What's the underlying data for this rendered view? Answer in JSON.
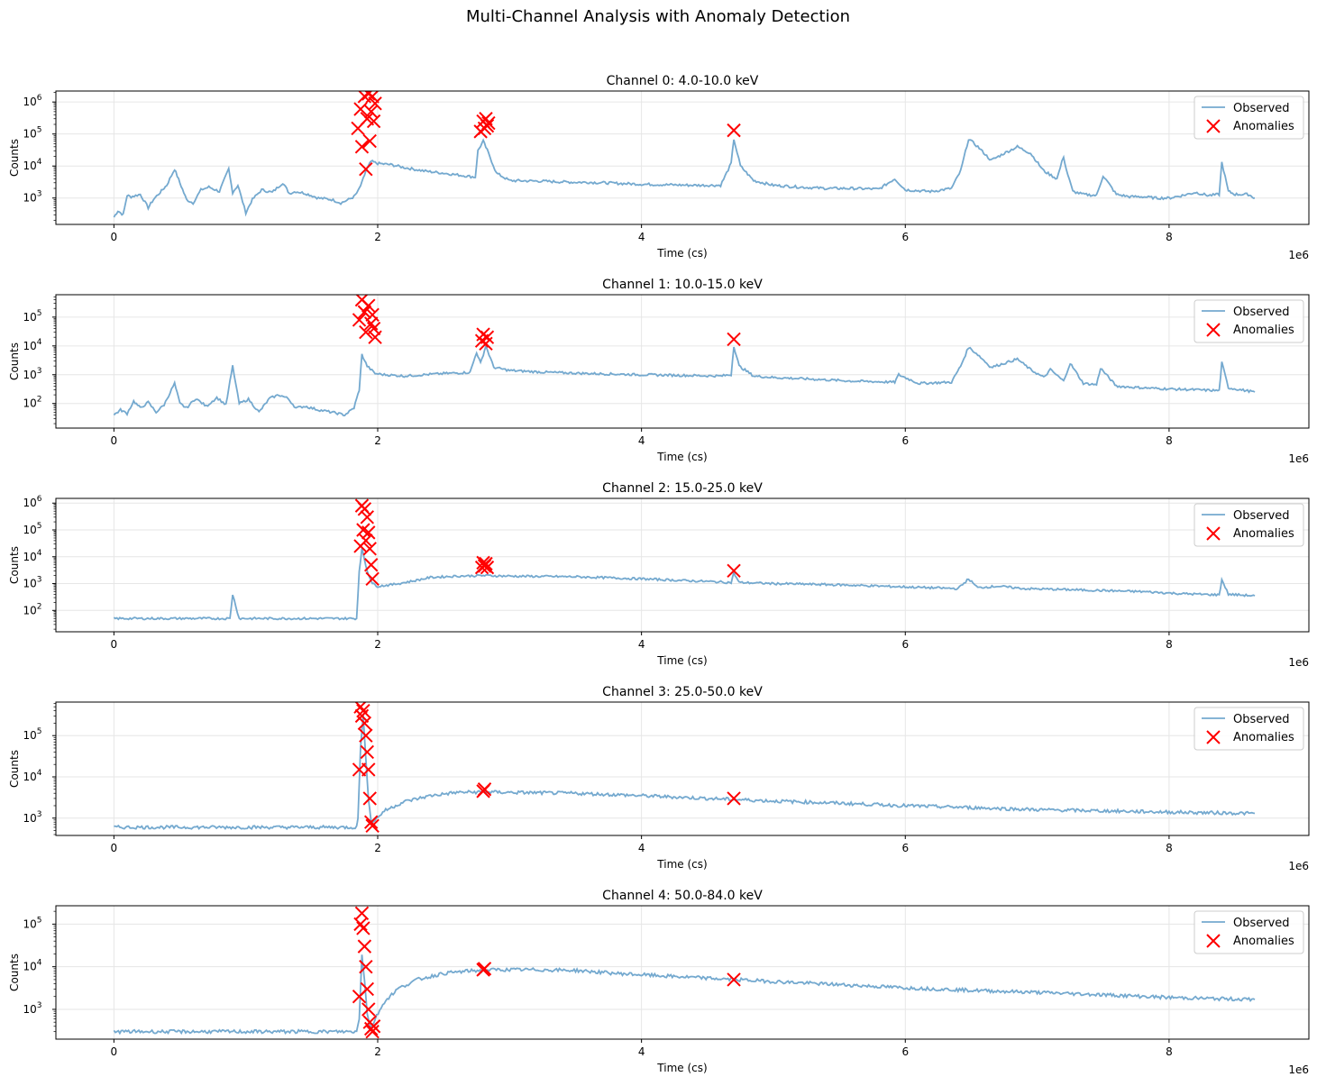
{
  "figure": {
    "title": "Multi-Channel Analysis with Anomaly Detection"
  },
  "legend": {
    "observed_label": "Observed",
    "anomalies_label": "Anomalies",
    "placement": "top-right"
  },
  "colors": {
    "observed": "#74a9cf",
    "anomalies": "#ff0000",
    "grid": "#e6e6e6"
  },
  "chart_data": [
    {
      "type": "line",
      "title": "Channel 0: 4.0-10.0 keV",
      "xlabel": "Time (cs)",
      "ylabel": "Counts",
      "x_offset_label": "1e6",
      "xlim": [
        -0.44,
        9.06
      ],
      "ylim": [
        150,
        2200000
      ],
      "yscale": "log",
      "grid": true,
      "xticks": [
        0,
        2,
        4,
        6,
        8
      ],
      "yticks": [
        {
          "value": 1000,
          "mantissa": "10",
          "exp": "3"
        },
        {
          "value": 10000,
          "mantissa": "10",
          "exp": "4"
        },
        {
          "value": 100000,
          "mantissa": "10",
          "exp": "5"
        },
        {
          "value": 1000000,
          "mantissa": "10",
          "exp": "6"
        }
      ],
      "series": [
        {
          "name": "Observed",
          "x": [
            0,
            0.03,
            0.07,
            0.1,
            0.13,
            0.2,
            0.26,
            0.3,
            0.35,
            0.4,
            0.46,
            0.5,
            0.55,
            0.6,
            0.66,
            0.72,
            0.8,
            0.87,
            0.9,
            0.94,
            1.0,
            1.05,
            1.12,
            1.2,
            1.28,
            1.33,
            1.38,
            1.45,
            1.55,
            1.65,
            1.72,
            1.78,
            1.82,
            1.85,
            1.88,
            1.91,
            1.95,
            2.0,
            2.1,
            2.2,
            2.35,
            2.5,
            2.65,
            2.74,
            2.76,
            2.8,
            2.84,
            2.9,
            3.0,
            3.2,
            3.4,
            3.5,
            3.6,
            3.8,
            4.0,
            4.2,
            4.4,
            4.6,
            4.68,
            4.7,
            4.75,
            4.85,
            5.0,
            5.2,
            5.4,
            5.6,
            5.8,
            5.92,
            6.0,
            6.2,
            6.35,
            6.42,
            6.48,
            6.55,
            6.65,
            6.75,
            6.85,
            6.95,
            7.05,
            7.15,
            7.2,
            7.22,
            7.27,
            7.35,
            7.45,
            7.5,
            7.6,
            7.7,
            7.8,
            7.9,
            8.0,
            8.1,
            8.2,
            8.3,
            8.38,
            8.4,
            8.45,
            8.5,
            8.6,
            8.65
          ],
          "y": [
            250,
            400,
            300,
            1200,
            1100,
            1300,
            500,
            900,
            1500,
            2500,
            8000,
            3000,
            900,
            700,
            1800,
            2200,
            1600,
            8000,
            1500,
            2500,
            350,
            900,
            1800,
            1500,
            3000,
            1400,
            1600,
            1400,
            1000,
            900,
            700,
            900,
            1100,
            1600,
            3000,
            7000,
            14000,
            12000,
            11000,
            9000,
            7000,
            6000,
            5000,
            4500,
            30000,
            60000,
            25000,
            6000,
            3500,
            3400,
            3200,
            3100,
            3100,
            2900,
            2700,
            2600,
            2500,
            2500,
            12000,
            70000,
            10000,
            3500,
            2500,
            2200,
            2000,
            2000,
            1900,
            4000,
            1800,
            1600,
            2000,
            7000,
            70000,
            40000,
            15000,
            25000,
            40000,
            25000,
            7000,
            4000,
            20000,
            8000,
            1600,
            1300,
            1200,
            5000,
            1300,
            1100,
            1100,
            1000,
            1000,
            1200,
            1500,
            1200,
            1300,
            13000,
            1600,
            1300,
            1300,
            1000
          ]
        },
        {
          "name": "Anomalies",
          "x": [
            1.85,
            1.87,
            1.88,
            1.9,
            1.91,
            1.92,
            1.93,
            1.94,
            1.95,
            1.96,
            1.97,
            1.98,
            2.78,
            2.8,
            2.81,
            2.82,
            2.83,
            2.84,
            4.7
          ],
          "y": [
            150000,
            600000,
            40000,
            1500000,
            8000,
            300000,
            1800000,
            60000,
            500000,
            1500000,
            250000,
            900000,
            120000,
            250000,
            150000,
            300000,
            180000,
            220000,
            130000
          ]
        }
      ]
    },
    {
      "type": "line",
      "title": "Channel 1: 10.0-15.0 keV",
      "xlabel": "Time (cs)",
      "ylabel": "Counts",
      "x_offset_label": "1e6",
      "xlim": [
        -0.44,
        9.06
      ],
      "ylim": [
        14,
        600000
      ],
      "yscale": "log",
      "grid": true,
      "xticks": [
        0,
        2,
        4,
        6,
        8
      ],
      "yticks": [
        {
          "value": 100,
          "mantissa": "10",
          "exp": "2"
        },
        {
          "value": 1000,
          "mantissa": "10",
          "exp": "3"
        },
        {
          "value": 10000,
          "mantissa": "10",
          "exp": "4"
        },
        {
          "value": 100000,
          "mantissa": "10",
          "exp": "5"
        }
      ],
      "series": [
        {
          "name": "Observed",
          "x": [
            0,
            0.05,
            0.1,
            0.15,
            0.2,
            0.26,
            0.32,
            0.38,
            0.46,
            0.5,
            0.55,
            0.62,
            0.7,
            0.78,
            0.85,
            0.9,
            0.95,
            1.02,
            1.1,
            1.18,
            1.25,
            1.32,
            1.38,
            1.45,
            1.55,
            1.65,
            1.75,
            1.82,
            1.86,
            1.88,
            1.92,
            1.98,
            2.05,
            2.2,
            2.35,
            2.5,
            2.7,
            2.75,
            2.78,
            2.82,
            2.88,
            3.0,
            3.3,
            3.6,
            4.0,
            4.3,
            4.6,
            4.68,
            4.7,
            4.74,
            4.85,
            5.0,
            5.3,
            5.6,
            5.92,
            5.95,
            6.1,
            6.35,
            6.42,
            6.48,
            6.55,
            6.65,
            6.75,
            6.85,
            6.95,
            7.05,
            7.1,
            7.2,
            7.25,
            7.35,
            7.45,
            7.48,
            7.6,
            7.8,
            8.0,
            8.2,
            8.38,
            8.4,
            8.45,
            8.65
          ],
          "y": [
            40,
            60,
            45,
            120,
            70,
            110,
            50,
            90,
            500,
            100,
            70,
            150,
            80,
            160,
            90,
            2000,
            100,
            140,
            50,
            150,
            200,
            150,
            70,
            80,
            60,
            50,
            40,
            70,
            300,
            5000,
            2000,
            1100,
            1000,
            900,
            1000,
            1100,
            1200,
            6000,
            2500,
            10000,
            1800,
            1400,
            1200,
            1100,
            1000,
            950,
            900,
            1000,
            10000,
            2000,
            900,
            800,
            700,
            600,
            550,
            1000,
            500,
            550,
            2000,
            9000,
            5000,
            1800,
            2500,
            3500,
            1500,
            800,
            1500,
            600,
            2500,
            500,
            450,
            1700,
            400,
            350,
            320,
            300,
            280,
            2600,
            350,
            250
          ]
        },
        {
          "name": "Anomalies",
          "x": [
            1.86,
            1.88,
            1.9,
            1.91,
            1.93,
            1.95,
            1.96,
            1.97,
            1.98,
            2.79,
            2.8,
            2.82,
            2.83,
            4.7
          ],
          "y": [
            80000,
            400000,
            150000,
            30000,
            250000,
            60000,
            120000,
            40000,
            20000,
            15000,
            25000,
            12000,
            20000,
            17000
          ]
        }
      ]
    },
    {
      "type": "line",
      "title": "Channel 2: 15.0-25.0 keV",
      "xlabel": "Time (cs)",
      "ylabel": "Counts",
      "x_offset_label": "1e6",
      "xlim": [
        -0.44,
        9.06
      ],
      "ylim": [
        16,
        1500000
      ],
      "yscale": "log",
      "grid": true,
      "xticks": [
        0,
        2,
        4,
        6,
        8
      ],
      "yticks": [
        {
          "value": 100,
          "mantissa": "10",
          "exp": "2"
        },
        {
          "value": 1000,
          "mantissa": "10",
          "exp": "3"
        },
        {
          "value": 10000,
          "mantissa": "10",
          "exp": "4"
        },
        {
          "value": 100000,
          "mantissa": "10",
          "exp": "5"
        },
        {
          "value": 1000000,
          "mantissa": "10",
          "exp": "6"
        }
      ],
      "series": [
        {
          "name": "Observed",
          "x": [
            0,
            0.2,
            0.4,
            0.6,
            0.8,
            0.88,
            0.9,
            0.95,
            1.1,
            1.3,
            1.5,
            1.7,
            1.84,
            1.86,
            1.88,
            1.92,
            1.96,
            2.0,
            2.1,
            2.25,
            2.4,
            2.6,
            2.8,
            3.0,
            3.5,
            4.0,
            4.5,
            4.68,
            4.7,
            4.74,
            5.0,
            5.5,
            6.0,
            6.4,
            6.48,
            6.55,
            6.7,
            6.9,
            7.2,
            7.5,
            7.8,
            8.1,
            8.38,
            8.4,
            8.45,
            8.65
          ],
          "y": [
            50,
            50,
            50,
            50,
            50,
            50,
            400,
            50,
            50,
            50,
            50,
            50,
            50,
            3000,
            20000,
            3000,
            1000,
            800,
            900,
            1200,
            1700,
            1900,
            2000,
            1900,
            1800,
            1500,
            1200,
            1100,
            2500,
            1100,
            1000,
            900,
            750,
            650,
            1500,
            700,
            800,
            650,
            600,
            550,
            500,
            420,
            380,
            1400,
            400,
            350
          ]
        },
        {
          "name": "Anomalies",
          "x": [
            1.87,
            1.88,
            1.89,
            1.9,
            1.91,
            1.92,
            1.93,
            1.94,
            1.95,
            1.96,
            2.79,
            2.8,
            2.81,
            2.82,
            2.83,
            4.7
          ],
          "y": [
            25000,
            800000,
            100000,
            600000,
            40000,
            300000,
            80000,
            20000,
            5000,
            1500,
            4000,
            6000,
            4500,
            5500,
            4000,
            3000
          ]
        }
      ]
    },
    {
      "type": "line",
      "title": "Channel 3: 25.0-50.0 keV",
      "xlabel": "Time (cs)",
      "ylabel": "Counts",
      "x_offset_label": "1e6",
      "xlim": [
        -0.44,
        9.06
      ],
      "ylim": [
        380,
        650000
      ],
      "yscale": "log",
      "grid": true,
      "xticks": [
        0,
        2,
        4,
        6,
        8
      ],
      "yticks": [
        {
          "value": 1000,
          "mantissa": "10",
          "exp": "3"
        },
        {
          "value": 10000,
          "mantissa": "10",
          "exp": "4"
        },
        {
          "value": 100000,
          "mantissa": "10",
          "exp": "5"
        }
      ],
      "series": [
        {
          "name": "Observed",
          "x": [
            0,
            0.5,
            1.0,
            1.5,
            1.84,
            1.85,
            1.87,
            1.89,
            1.91,
            1.93,
            1.95,
            1.98,
            2.05,
            2.2,
            2.4,
            2.6,
            2.8,
            3.0,
            3.5,
            4.0,
            4.5,
            5.0,
            5.5,
            6.0,
            6.5,
            7.0,
            7.5,
            8.0,
            8.3,
            8.65
          ],
          "y": [
            600,
            600,
            600,
            600,
            600,
            1000,
            50000,
            300000,
            30000,
            3000,
            800,
            900,
            1500,
            2500,
            3500,
            4200,
            4300,
            4200,
            4000,
            3500,
            3000,
            2600,
            2300,
            2000,
            1800,
            1600,
            1500,
            1400,
            1350,
            1300
          ]
        },
        {
          "name": "Anomalies",
          "x": [
            1.86,
            1.87,
            1.88,
            1.89,
            1.9,
            1.91,
            1.92,
            1.93,
            1.94,
            1.95,
            1.96,
            2.8,
            2.81,
            4.7
          ],
          "y": [
            15000,
            500000,
            300000,
            400000,
            200000,
            100000,
            40000,
            15000,
            3000,
            800,
            650,
            4500,
            5000,
            3000
          ]
        }
      ]
    },
    {
      "type": "line",
      "title": "Channel 4: 50.0-84.0 keV",
      "xlabel": "Time (cs)",
      "ylabel": "Counts",
      "x_offset_label": "1e6",
      "xlim": [
        -0.44,
        9.06
      ],
      "ylim": [
        200,
        270000
      ],
      "yscale": "log",
      "grid": true,
      "xticks": [
        0,
        2,
        4,
        6,
        8
      ],
      "yticks": [
        {
          "value": 1000,
          "mantissa": "10",
          "exp": "3"
        },
        {
          "value": 10000,
          "mantissa": "10",
          "exp": "4"
        },
        {
          "value": 100000,
          "mantissa": "10",
          "exp": "5"
        }
      ],
      "series": [
        {
          "name": "Observed",
          "x": [
            0,
            0.5,
            1.0,
            1.5,
            1.84,
            1.86,
            1.88,
            1.9,
            1.92,
            1.95,
            1.98,
            2.05,
            2.15,
            2.3,
            2.5,
            2.7,
            2.9,
            3.2,
            3.5,
            3.8,
            4.2,
            4.6,
            5.0,
            5.5,
            6.0,
            6.5,
            7.0,
            7.5,
            8.0,
            8.3,
            8.65
          ],
          "y": [
            300,
            300,
            300,
            300,
            300,
            600,
            20000,
            5000,
            800,
            350,
            600,
            1500,
            3000,
            5000,
            7000,
            8000,
            8500,
            8500,
            8200,
            7000,
            6000,
            5200,
            4500,
            3800,
            3200,
            2800,
            2500,
            2200,
            1900,
            1800,
            1700
          ]
        },
        {
          "name": "Anomalies",
          "x": [
            1.86,
            1.87,
            1.88,
            1.89,
            1.9,
            1.91,
            1.92,
            1.93,
            1.94,
            1.95,
            1.96,
            1.97,
            2.8,
            2.81,
            4.7
          ],
          "y": [
            2000,
            100000,
            180000,
            80000,
            30000,
            10000,
            3000,
            1000,
            500,
            350,
            300,
            400,
            8500,
            9000,
            5000
          ]
        }
      ]
    }
  ]
}
